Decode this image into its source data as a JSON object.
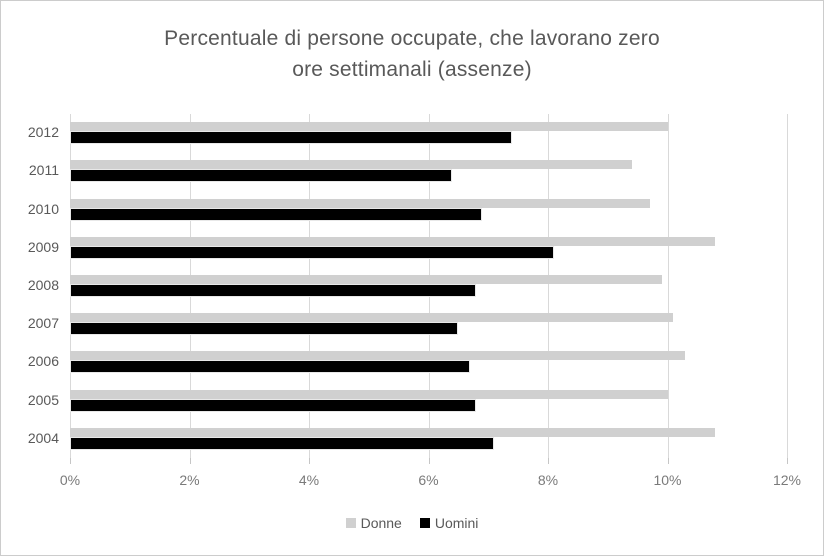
{
  "chart_data": {
    "type": "bar",
    "orientation": "horizontal",
    "title": "Percentuale di persone occupate, che lavorano zero ore settimanali (assenze)",
    "title_lines": [
      "Percentuale di persone occupate, che lavorano zero",
      "ore settimanali (assenze)"
    ],
    "categories": [
      "2012",
      "2011",
      "2010",
      "2009",
      "2008",
      "2007",
      "2006",
      "2005",
      "2004"
    ],
    "series": [
      {
        "name": "Donne",
        "color": "#d0d0d0",
        "values": [
          10.0,
          9.4,
          9.7,
          10.8,
          9.9,
          10.1,
          10.3,
          10.0,
          10.8
        ]
      },
      {
        "name": "Uomini",
        "color": "#000000",
        "values": [
          7.4,
          6.4,
          6.9,
          8.1,
          6.8,
          6.5,
          6.7,
          6.8,
          7.1
        ]
      }
    ],
    "x_axis": {
      "tick_labels": [
        "0%",
        "2%",
        "4%",
        "6%",
        "8%",
        "10%",
        "12%"
      ],
      "tick_values": [
        0,
        2,
        4,
        6,
        8,
        10,
        12
      ],
      "min": 0,
      "max": 12
    },
    "grid": true,
    "legend_position": "bottom",
    "colors": {
      "title_text": "#595959",
      "category_text": "#595959",
      "axis_text": "#7a7a7a",
      "gridline": "#d9d9d9",
      "frame_border": "#cccccc",
      "background": "#ffffff"
    }
  }
}
